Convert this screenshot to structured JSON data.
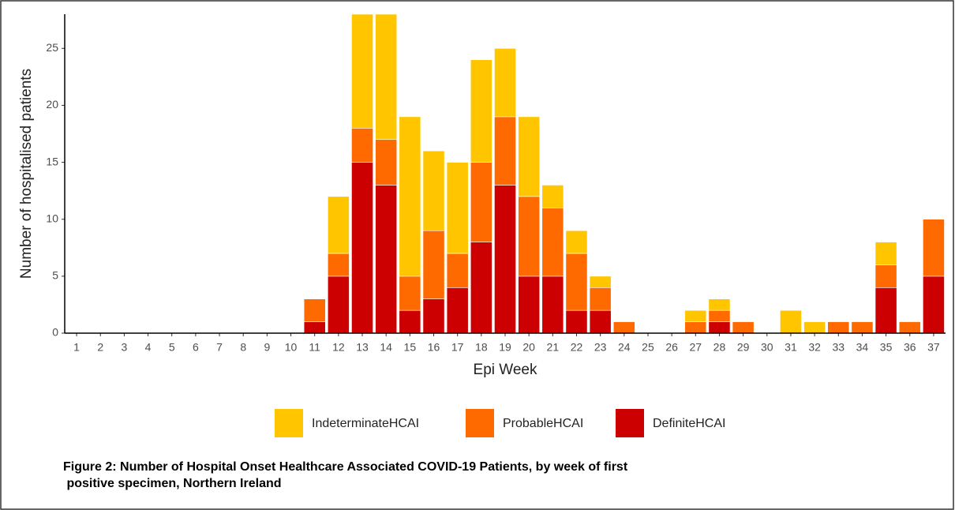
{
  "chart_data": {
    "type": "stacked_bar",
    "x_label": "Epi Week",
    "y_label": "Number of hospitalised patients",
    "caption": [
      "Figure 2: Number of Hospital Onset Healthcare Associated COVID-19 Patients, by week of first",
      " positive specimen, Northern Ireland"
    ],
    "categories": [
      "1",
      "2",
      "3",
      "4",
      "5",
      "6",
      "7",
      "8",
      "9",
      "10",
      "11",
      "12",
      "13",
      "14",
      "15",
      "16",
      "17",
      "18",
      "19",
      "20",
      "21",
      "22",
      "23",
      "24",
      "25",
      "26",
      "27",
      "28",
      "29",
      "30",
      "31",
      "32",
      "33",
      "34",
      "35",
      "36",
      "37"
    ],
    "series": [
      {
        "name": "IndeterminateHCAI",
        "color": "#ffc600",
        "values": [
          0,
          0,
          0,
          0,
          0,
          0,
          0,
          0,
          0,
          0,
          0,
          5,
          10,
          11,
          14,
          7,
          8,
          9,
          6,
          7,
          2,
          2,
          1,
          0,
          0,
          0,
          1,
          1,
          0,
          0,
          2,
          1,
          0,
          0,
          2,
          0,
          0
        ]
      },
      {
        "name": "ProbableHCAI",
        "color": "#ff6a00",
        "values": [
          0,
          0,
          0,
          0,
          0,
          0,
          0,
          0,
          0,
          0,
          2,
          2,
          3,
          4,
          3,
          6,
          3,
          7,
          6,
          7,
          6,
          5,
          2,
          1,
          0,
          0,
          1,
          1,
          1,
          0,
          0,
          0,
          1,
          1,
          2,
          1,
          5
        ]
      },
      {
        "name": "DefiniteHCAI",
        "color": "#cc0000",
        "values": [
          0,
          0,
          0,
          0,
          0,
          0,
          0,
          0,
          0,
          0,
          1,
          5,
          15,
          13,
          2,
          3,
          4,
          8,
          13,
          5,
          5,
          2,
          2,
          0,
          0,
          0,
          0,
          1,
          0,
          0,
          0,
          0,
          0,
          0,
          4,
          0,
          5
        ]
      }
    ],
    "stack_order": [
      "DefiniteHCAI",
      "ProbableHCAI",
      "IndeterminateHCAI"
    ],
    "ylim": [
      0,
      28
    ],
    "yticks": [
      0,
      5,
      10,
      15,
      20,
      25
    ],
    "grid": false,
    "legend": "bottom"
  }
}
